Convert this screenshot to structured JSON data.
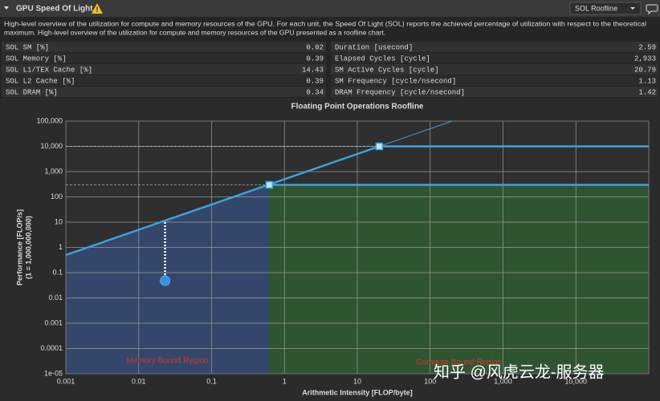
{
  "header": {
    "title": "GPU Speed Of Light",
    "dropdown": "SOL Roofline"
  },
  "description": [
    "High-level overview of the utilization for compute and memory resources of the GPU. For each unit, the Speed Of Light (SOL) reports the achieved percentage of utilization with respect to the theoretical",
    "maximum. High-level overview of the utilization for compute and memory resources of the GPU presented as a roofline chart."
  ],
  "metrics": {
    "left": [
      {
        "name": "SOL SM [%]",
        "value": "0.02"
      },
      {
        "name": "SOL Memory [%]",
        "value": "0.39"
      },
      {
        "name": "SOL L1/TEX Cache [%]",
        "value": "14.43"
      },
      {
        "name": "SOL L2 Cache [%]",
        "value": "0.39"
      },
      {
        "name": "SOL DRAM [%]",
        "value": "0.34"
      }
    ],
    "right": [
      {
        "name": "Duration [usecond]",
        "value": "2.59"
      },
      {
        "name": "Elapsed Cycles [cycle]",
        "value": "2,933"
      },
      {
        "name": "SM Active Cycles [cycle]",
        "value": "20.79"
      },
      {
        "name": "SM Frequency [cycle/nsecond]",
        "value": "1.13"
      },
      {
        "name": "DRAM Frequency [cycle/nsecond]",
        "value": "1.42"
      }
    ]
  },
  "chart_data": {
    "type": "roofline",
    "title": "Floating Point Operations Roofline",
    "xlabel": "Arithmetic Intensity [FLOP/byte]",
    "ylabel": [
      "Performance [FLOP/s]",
      "(1 = 1,000,000,000)"
    ],
    "log_x": true,
    "log_y": true,
    "grid": true,
    "xlim": [
      0.001,
      100000
    ],
    "ylim": [
      1e-05,
      100000
    ],
    "xticks": [
      0.001,
      0.01,
      0.1,
      1,
      10,
      100,
      {
        "value": 1000,
        "label": "1,000"
      },
      {
        "value": 10000,
        "label": "10,000"
      }
    ],
    "yticks": [
      {
        "value": 100000,
        "label": "100,000"
      },
      {
        "value": 10000,
        "label": "10,000"
      },
      {
        "value": 1000,
        "label": "1,000"
      },
      100,
      10,
      1,
      0.1,
      0.01,
      0.001,
      0.0001,
      {
        "value": 1e-05,
        "label": "1e-05"
      }
    ],
    "series": [
      {
        "color": "#3ba3dc",
        "x": [
          0.001,
          20
        ],
        "values": [
          0.5,
          10000
        ]
      },
      {
        "color": "#3ba3dc",
        "x": [
          20,
          200
        ],
        "values": [
          10000,
          100000
        ],
        "thin": true
      },
      {
        "color": "#3ba3dc",
        "x": [
          20,
          100000
        ],
        "values": [
          10000,
          10000
        ]
      },
      {
        "color": "#3ba3dc",
        "x": [
          0.62,
          100000
        ],
        "values": [
          300,
          300
        ]
      }
    ],
    "ridge_points": {
      "color": "#bfe6f8",
      "x": [
        0.62,
        20
      ],
      "values": [
        300,
        10000
      ]
    },
    "achieved": {
      "color": "#3f8fe0",
      "x": [
        0.023
      ],
      "values": [
        0.048
      ]
    },
    "regions": [
      {
        "label": "Memory Bound Region",
        "color": "#34476b"
      },
      {
        "label": "Compute Bound Region",
        "color": "#2f5530"
      }
    ],
    "region_label_color": "#d9342b"
  },
  "watermark": "知乎 @风虎云龙-服务器"
}
